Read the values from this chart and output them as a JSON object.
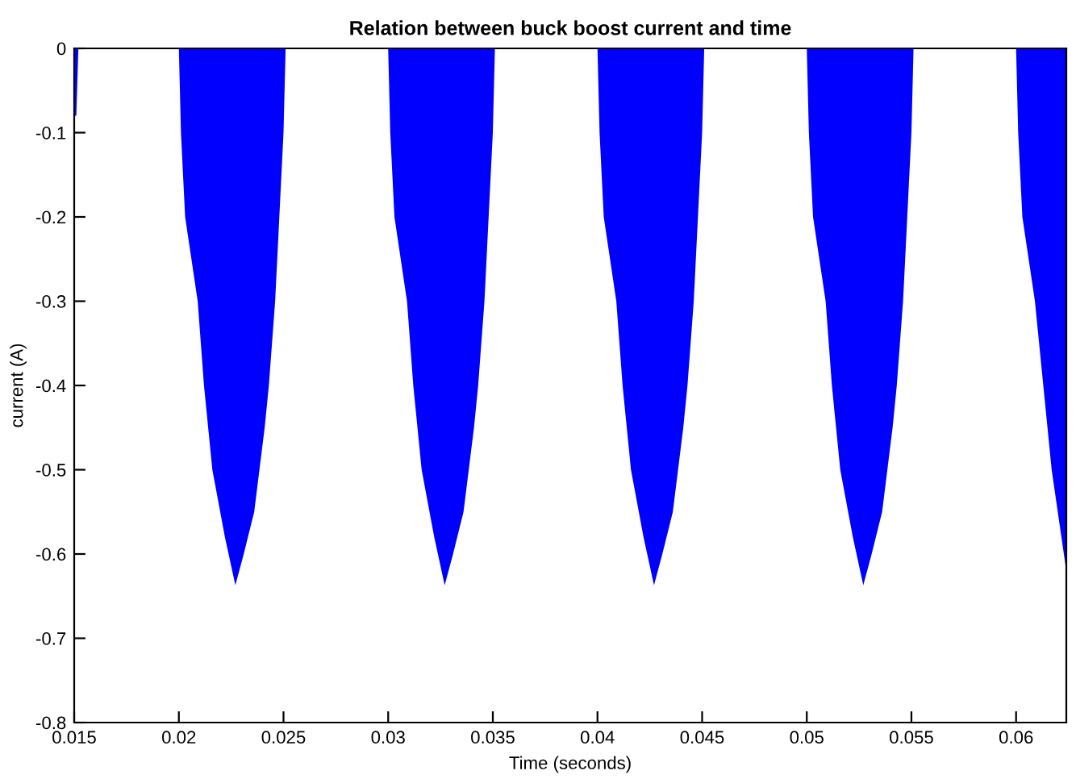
{
  "chart_data": {
    "type": "area",
    "title": "Relation between buck boost current and time",
    "xlabel": "Time (seconds)",
    "ylabel": "current (A)",
    "xlim": [
      0.015,
      0.0624
    ],
    "ylim": [
      -0.8,
      0
    ],
    "xticks": [
      0.015,
      0.02,
      0.025,
      0.03,
      0.035,
      0.04,
      0.045,
      0.05,
      0.055,
      0.06
    ],
    "yticks": [
      0,
      -0.1,
      -0.2,
      -0.3,
      -0.4,
      -0.5,
      -0.6,
      -0.7,
      -0.8
    ],
    "grid": false,
    "series": [
      {
        "color": "#0000ff",
        "x": [
          0.015,
          0.0151,
          0.0152,
          0.02,
          0.02005,
          0.0201,
          0.0203,
          0.0209,
          0.0212,
          0.0216,
          0.0222,
          0.0227,
          0.0231,
          0.0236,
          0.0241,
          0.0243,
          0.0246,
          0.0248,
          0.025,
          0.0251,
          0.03,
          0.03005,
          0.0301,
          0.0303,
          0.0309,
          0.0312,
          0.0316,
          0.0322,
          0.0327,
          0.0331,
          0.0336,
          0.0341,
          0.0343,
          0.0346,
          0.0348,
          0.035,
          0.0351,
          0.04,
          0.04005,
          0.0401,
          0.0403,
          0.0409,
          0.0412,
          0.0416,
          0.0422,
          0.0427,
          0.0431,
          0.0436,
          0.0441,
          0.0443,
          0.0446,
          0.0448,
          0.045,
          0.0451,
          0.05,
          0.05005,
          0.0501,
          0.0503,
          0.0509,
          0.0512,
          0.0516,
          0.0522,
          0.0527,
          0.0531,
          0.0536,
          0.0541,
          0.0543,
          0.0546,
          0.0548,
          0.055,
          0.0551,
          0.06,
          0.06005,
          0.0601,
          0.0603,
          0.0609,
          0.0613,
          0.0617,
          0.0624
        ],
        "values": [
          -0.08,
          -0.08,
          0,
          0,
          -0.05,
          -0.1,
          -0.2,
          -0.3,
          -0.4,
          -0.5,
          -0.58,
          -0.637,
          -0.6,
          -0.55,
          -0.45,
          -0.4,
          -0.3,
          -0.2,
          -0.1,
          0,
          0,
          -0.05,
          -0.1,
          -0.2,
          -0.3,
          -0.4,
          -0.5,
          -0.58,
          -0.637,
          -0.6,
          -0.55,
          -0.45,
          -0.4,
          -0.3,
          -0.2,
          -0.1,
          0,
          0,
          -0.05,
          -0.1,
          -0.2,
          -0.3,
          -0.4,
          -0.5,
          -0.58,
          -0.637,
          -0.6,
          -0.55,
          -0.45,
          -0.4,
          -0.3,
          -0.2,
          -0.1,
          0,
          0,
          -0.05,
          -0.1,
          -0.2,
          -0.3,
          -0.4,
          -0.5,
          -0.58,
          -0.637,
          -0.6,
          -0.55,
          -0.45,
          -0.4,
          -0.3,
          -0.2,
          -0.1,
          0,
          0,
          -0.05,
          -0.1,
          -0.2,
          -0.3,
          -0.4,
          -0.5,
          -0.62
        ]
      }
    ]
  }
}
